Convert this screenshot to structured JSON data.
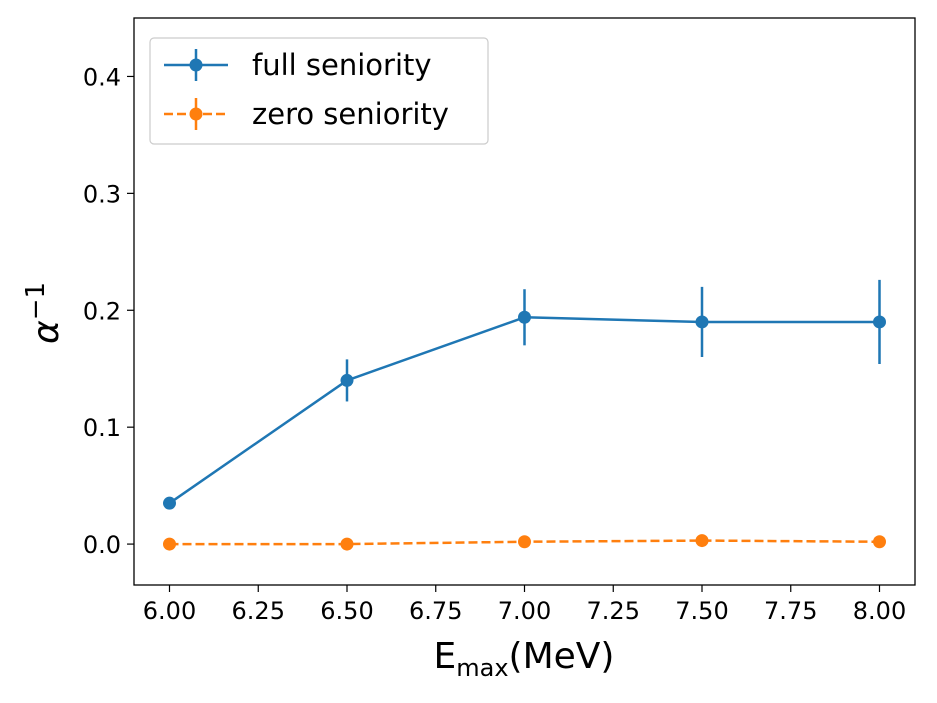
{
  "chart_data": {
    "type": "line",
    "title": "",
    "xlabel": {
      "main": "E",
      "sub": "max",
      "tail": "(MeV)"
    },
    "ylabel": {
      "main": "α",
      "sup": "−1"
    },
    "xlim": [
      5.9,
      8.1
    ],
    "ylim": [
      -0.035,
      0.45
    ],
    "xticks": [
      6.0,
      6.25,
      6.5,
      6.75,
      7.0,
      7.25,
      7.5,
      7.75,
      8.0
    ],
    "xtick_labels": [
      "6.00",
      "6.25",
      "6.50",
      "6.75",
      "7.00",
      "7.25",
      "7.50",
      "7.75",
      "8.00"
    ],
    "yticks": [
      0.0,
      0.1,
      0.2,
      0.3,
      0.4
    ],
    "ytick_labels": [
      "0.0",
      "0.1",
      "0.2",
      "0.3",
      "0.4"
    ],
    "grid": false,
    "legend": {
      "placement": "top-left"
    },
    "x": [
      6.0,
      6.5,
      7.0,
      7.5,
      8.0
    ],
    "series": [
      {
        "name": "full seniority",
        "color": "#1f77b4",
        "linestyle": "solid",
        "values": [
          0.035,
          0.14,
          0.194,
          0.19,
          0.19
        ],
        "errors": [
          0.004,
          0.018,
          0.024,
          0.03,
          0.036
        ]
      },
      {
        "name": "zero seniority",
        "color": "#ff7f0e",
        "linestyle": "dashed",
        "values": [
          0.0,
          0.0,
          0.002,
          0.003,
          0.002
        ],
        "errors": [
          0.0,
          0.0,
          0.0,
          0.0,
          0.0
        ]
      }
    ]
  }
}
